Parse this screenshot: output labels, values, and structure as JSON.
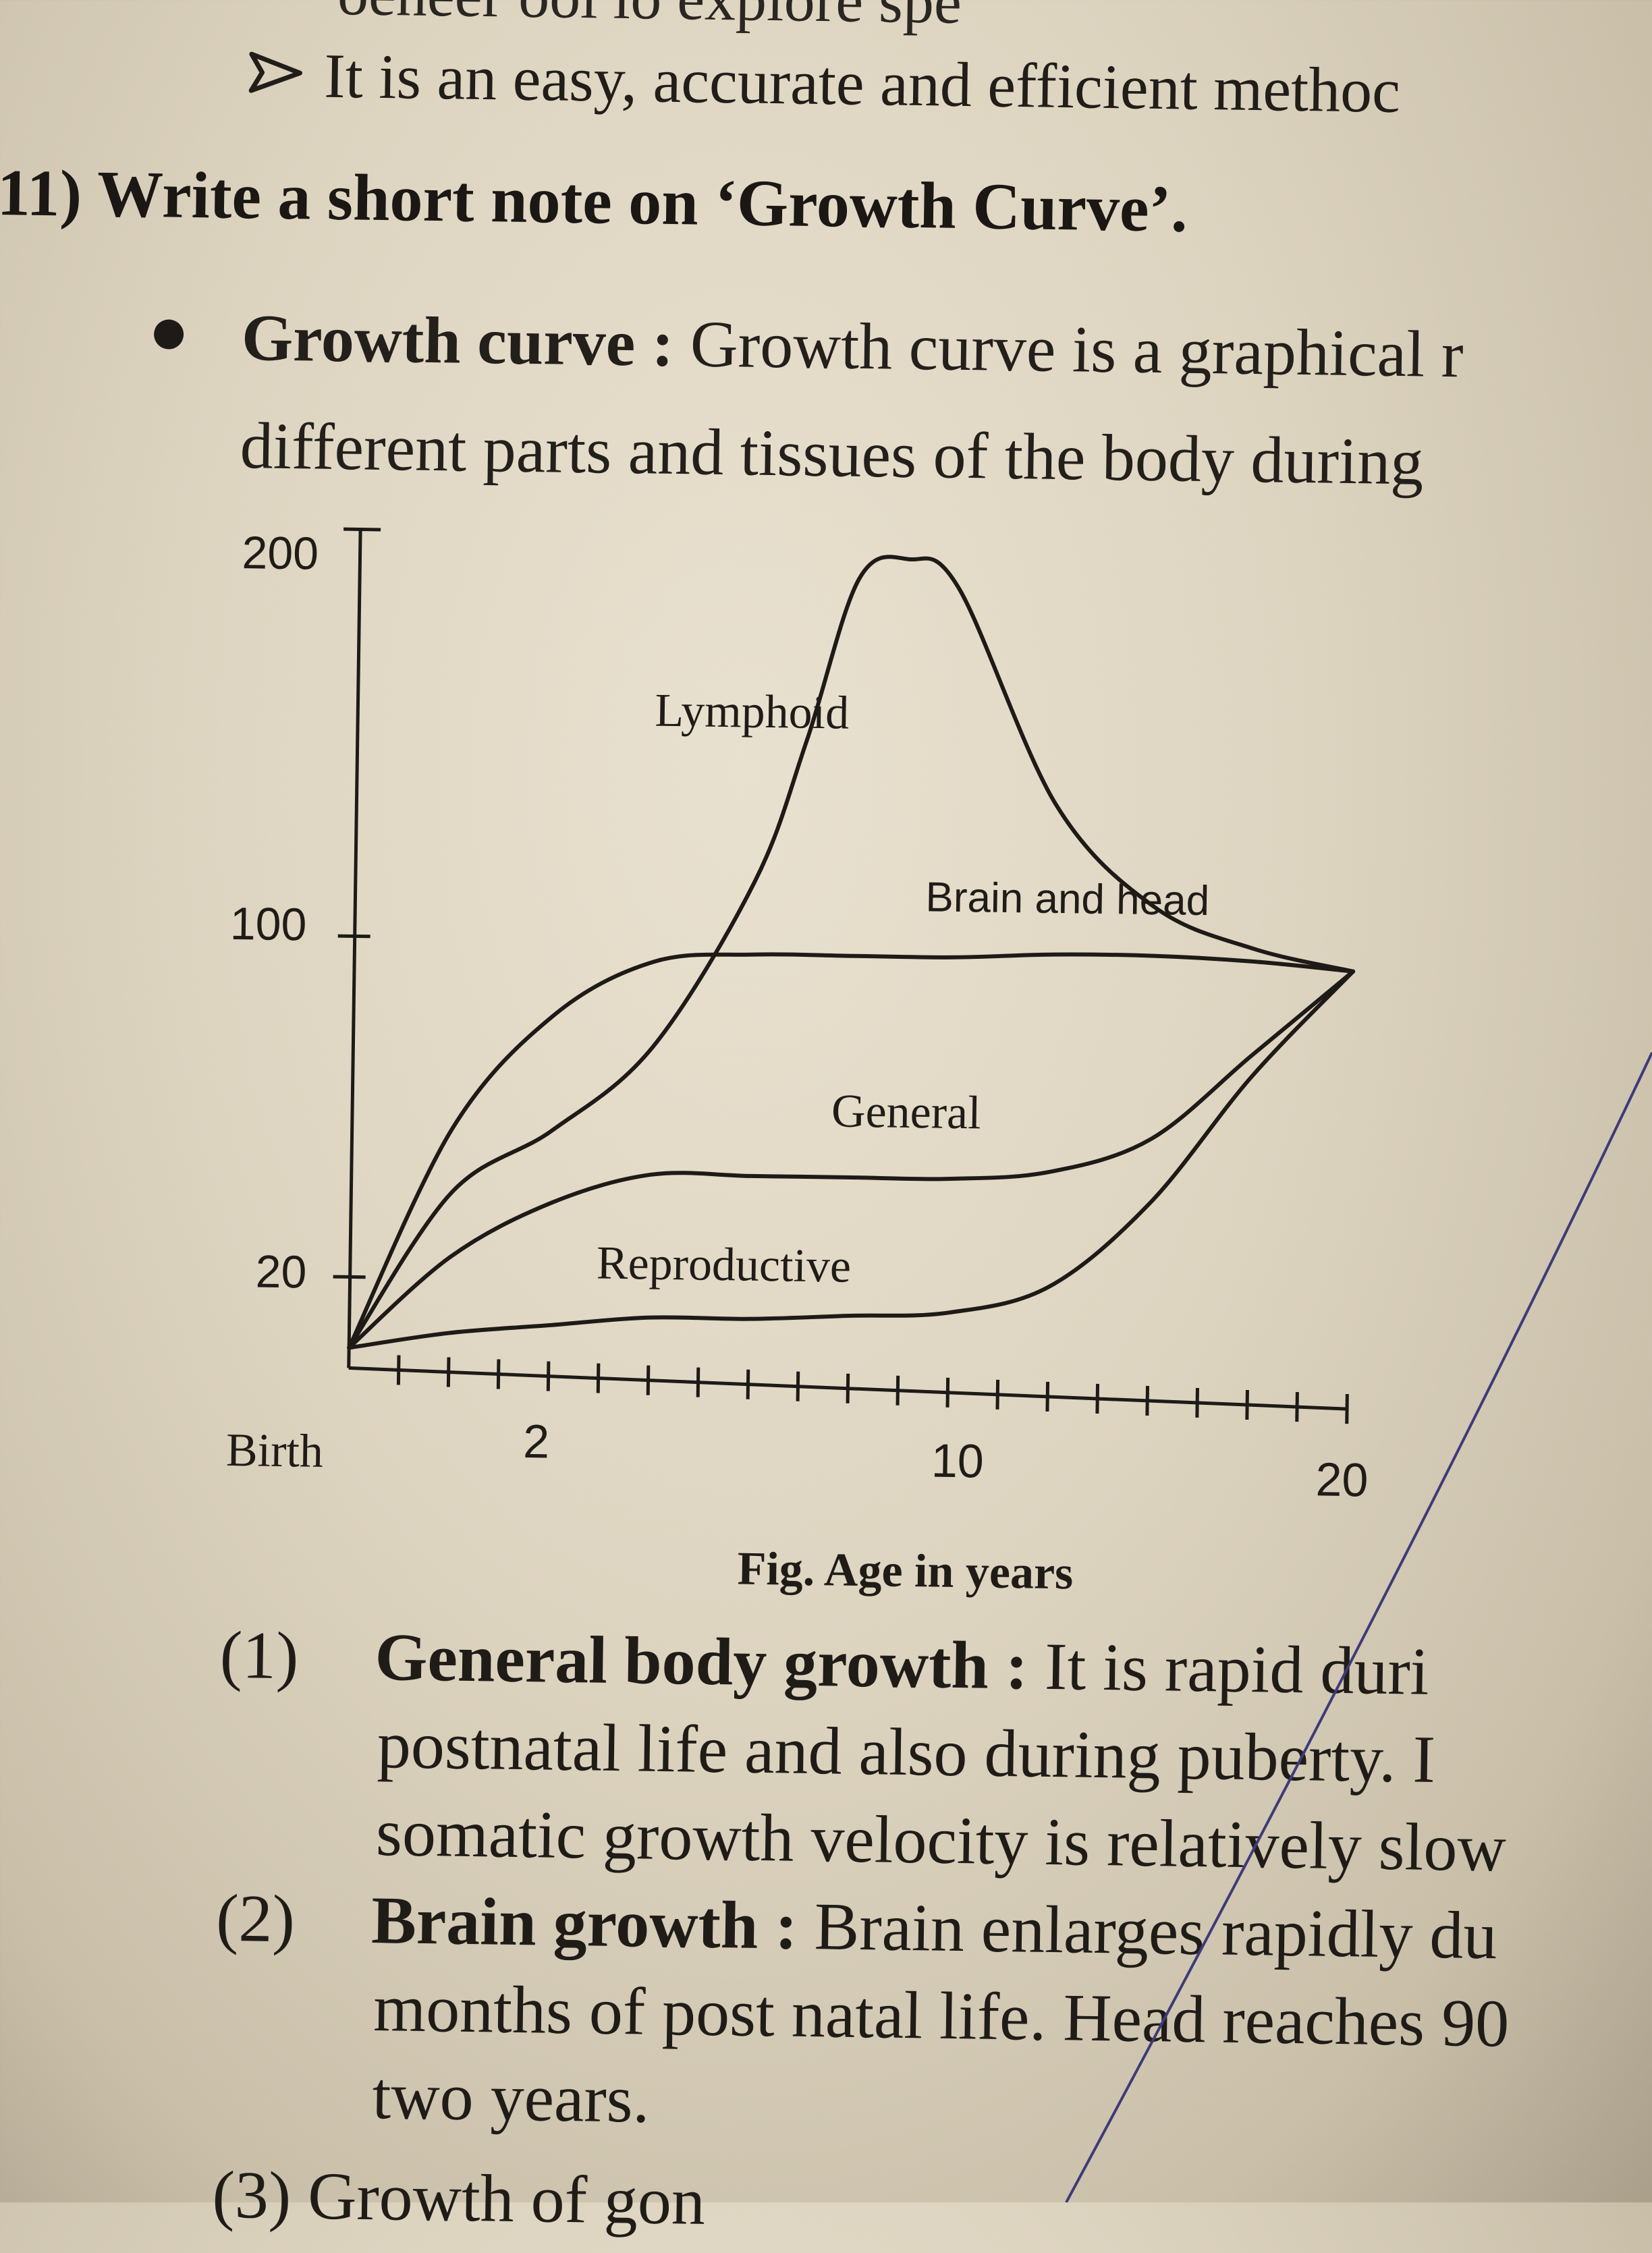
{
  "top_partial": "oeneer ool lo explore spe",
  "arrow_line": "It is an easy, accurate and efficient methoc",
  "question": "11) Write a short note on ‘Growth Curve’.",
  "definition": {
    "term": "Growth curve :",
    "line1_rest": " Growth curve is a graphical r",
    "line2": "different parts and tissues of the body during"
  },
  "figure_caption": "Fig. Age in years",
  "chart_data": {
    "type": "line",
    "x_tick_labels": [
      "Birth",
      "2",
      "10",
      "20"
    ],
    "y_tick_labels": [
      "200",
      "100",
      "20"
    ],
    "series": [
      {
        "name": "Lymphoid",
        "x": [
          0,
          2,
          4,
          6,
          8,
          9,
          10,
          11,
          12,
          14,
          16,
          18,
          20
        ],
        "y": [
          0,
          40,
          55,
          75,
          115,
          150,
          190,
          195,
          188,
          135,
          110,
          100,
          95
        ]
      },
      {
        "name": "Brain and head",
        "x": [
          0,
          2,
          4,
          6,
          8,
          10,
          12,
          14,
          16,
          18,
          20
        ],
        "y": [
          0,
          55,
          82,
          95,
          97,
          97,
          97,
          98,
          98,
          97,
          95
        ]
      },
      {
        "name": "General",
        "x": [
          0,
          2,
          4,
          6,
          8,
          10,
          12,
          14,
          16,
          18,
          20
        ],
        "y": [
          0,
          25,
          38,
          45,
          45,
          45,
          45,
          47,
          55,
          75,
          95
        ]
      },
      {
        "name": "Reproductive",
        "x": [
          0,
          2,
          4,
          6,
          8,
          10,
          12,
          14,
          16,
          18,
          20
        ],
        "y": [
          0,
          8,
          10,
          12,
          12,
          13,
          14,
          20,
          40,
          70,
          95
        ]
      }
    ]
  },
  "items": [
    {
      "num": "(1)",
      "title": "General body growth :",
      "text": " It is rapid duri",
      "lines": [
        "postnatal life and also during puberty. I",
        "somatic growth velocity is relatively slow"
      ]
    },
    {
      "num": "(2)",
      "title": "Brain growth :",
      "text": " Brain enlarges rapidly du",
      "lines": [
        "months of post natal life. Head reaches 90",
        "two years."
      ]
    }
  ],
  "bottom_partial": "(3)  Growth of gon"
}
